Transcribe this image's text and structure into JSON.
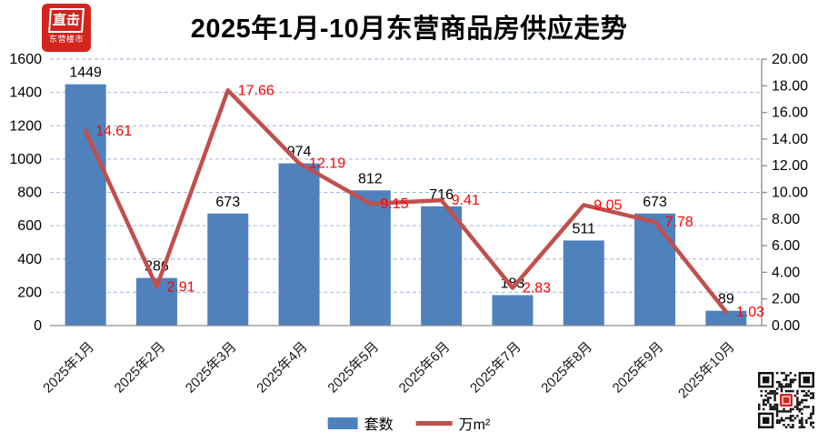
{
  "header": {
    "title": "2025年1月-10月东营商品房供应走势",
    "logo": {
      "brand_top": "直击",
      "brand_bottom": "东营楼市"
    }
  },
  "chart_data": {
    "type": "combo (bar + line, dual axis)",
    "title": "2025年1月-10月东营商品房供应走势",
    "categories": [
      "2025年1月",
      "2025年2月",
      "2025年3月",
      "2025年4月",
      "2025年5月",
      "2025年6月",
      "2025年7月",
      "2025年8月",
      "2025年9月",
      "2025年10月"
    ],
    "series": [
      {
        "name": "套数",
        "type": "bar",
        "axis": "left",
        "color": "#4f81bd",
        "label_color": "#000000",
        "values": [
          1449,
          286,
          673,
          974,
          812,
          716,
          183,
          511,
          673,
          89
        ]
      },
      {
        "name": "万m²",
        "type": "line",
        "axis": "right",
        "color": "#c0504d",
        "label_color": "#fe0000",
        "values": [
          14.61,
          2.91,
          17.66,
          12.19,
          9.15,
          9.41,
          2.83,
          9.05,
          7.78,
          1.03
        ]
      }
    ],
    "left_axis": {
      "min": 0,
      "max": 1600,
      "step": 200,
      "tick_labels": [
        "0",
        "200",
        "400",
        "600",
        "800",
        "1000",
        "1200",
        "1400",
        "1600"
      ]
    },
    "right_axis": {
      "min": 0,
      "max": 20,
      "step": 2,
      "tick_labels": [
        "0.00",
        "2.00",
        "4.00",
        "6.00",
        "8.00",
        "10.00",
        "12.00",
        "14.00",
        "16.00",
        "18.00",
        "20.00"
      ]
    },
    "grid": true,
    "gridline_color": "#9fb6d9",
    "axis_line_color": "#8c8c8c",
    "x_labels_rotation_deg": -45,
    "legend_position": "bottom"
  },
  "qr_code": {
    "icon": "wechat-qr-code",
    "center_logo_color": "#d2251e"
  }
}
